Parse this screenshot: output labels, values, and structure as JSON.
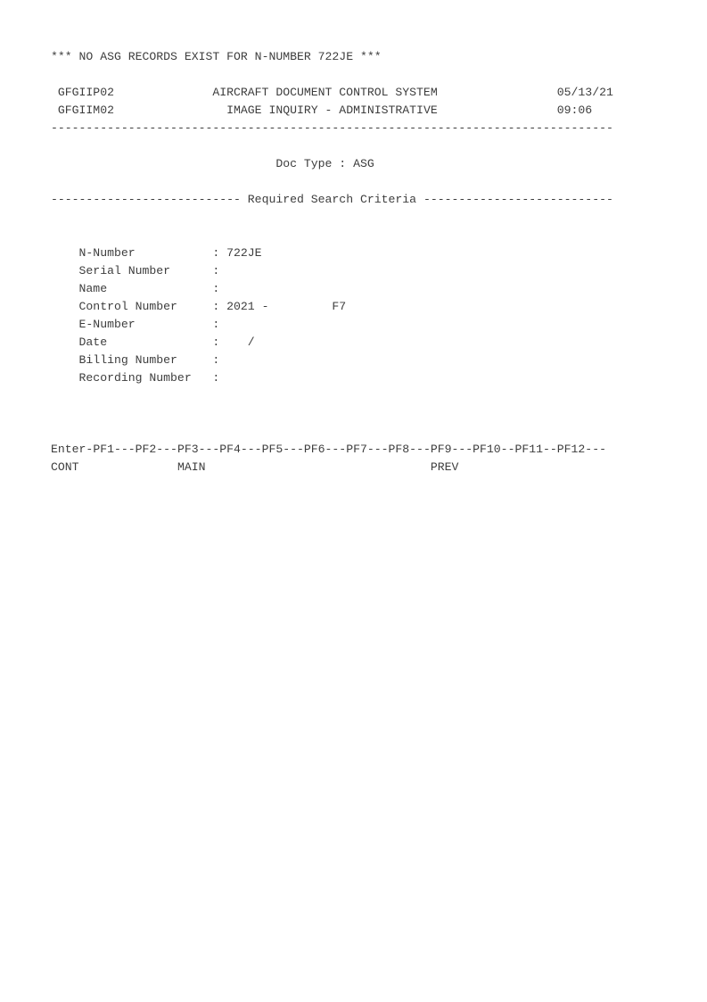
{
  "screen": {
    "status_line": "*** NO ASG RECORDS EXIST FOR N-NUMBER 722JE ***",
    "header": {
      "program_id_line1": "GFGIIP02",
      "program_id_line2": "GFGIIM02",
      "title_line1": "AIRCRAFT DOCUMENT CONTROL SYSTEM",
      "title_line2": "IMAGE INQUIRY - ADMINISTRATIVE",
      "date": "05/13/21",
      "time": "09:06"
    },
    "divider": "--------------------------------------------------------------------------------",
    "doc_type": {
      "label": "Doc Type",
      "separator": ":",
      "value": "ASG"
    },
    "section": {
      "dashes_left": "---------------------------",
      "title": "Required Search Criteria",
      "dashes_right": "---------------------------"
    },
    "field_separator": ":",
    "fields": [
      {
        "label": "N-Number",
        "value": "722JE"
      },
      {
        "label": "Serial Number",
        "value": ""
      },
      {
        "label": "Name",
        "value": ""
      },
      {
        "label": "Control Number",
        "value": "2021 -         F7"
      },
      {
        "label": "E-Number",
        "value": ""
      },
      {
        "label": "Date",
        "value": "   /"
      },
      {
        "label": "Billing Number",
        "value": ""
      },
      {
        "label": "Recording Number",
        "value": ""
      }
    ],
    "pfkeys": {
      "key_line": "Enter-PF1---PF2---PF3---PF4---PF5---PF6---PF7---PF8---PF9---PF10--PF11--PF12---",
      "cont_label": "CONT",
      "main_label": "MAIN",
      "prev_label": "PREV"
    }
  }
}
